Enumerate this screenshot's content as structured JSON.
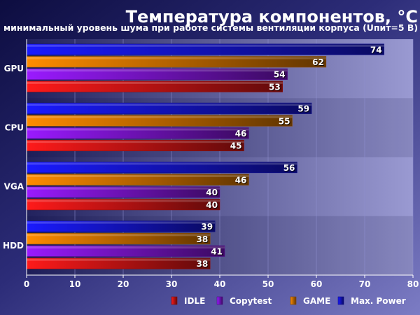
{
  "chart_data": {
    "type": "bar",
    "orientation": "horizontal",
    "title": "Температура компонентов, °С",
    "subtitle": "минимальный уровень шума при работе системы вентиляции корпуса (Uпит=5 В)",
    "categories": [
      "GPU",
      "CPU",
      "VGA",
      "HDD"
    ],
    "series": [
      {
        "name": "Max. Power",
        "color": "#1a1aff",
        "values": [
          74,
          59,
          56,
          39
        ]
      },
      {
        "name": "GAME",
        "color": "#ff8c00",
        "values": [
          62,
          55,
          46,
          38
        ]
      },
      {
        "name": "Copytest",
        "color": "#9a1aff",
        "values": [
          54,
          46,
          40,
          41
        ]
      },
      {
        "name": "IDLE",
        "color": "#ff1a1a",
        "values": [
          53,
          45,
          40,
          38
        ]
      }
    ],
    "legend_order": [
      "IDLE",
      "Copytest",
      "GAME",
      "Max. Power"
    ],
    "xlim": [
      0,
      80
    ],
    "xticks": [
      0,
      10,
      20,
      30,
      40,
      50,
      60,
      70,
      80
    ],
    "legend_position": "bottom-right",
    "grid": true
  }
}
